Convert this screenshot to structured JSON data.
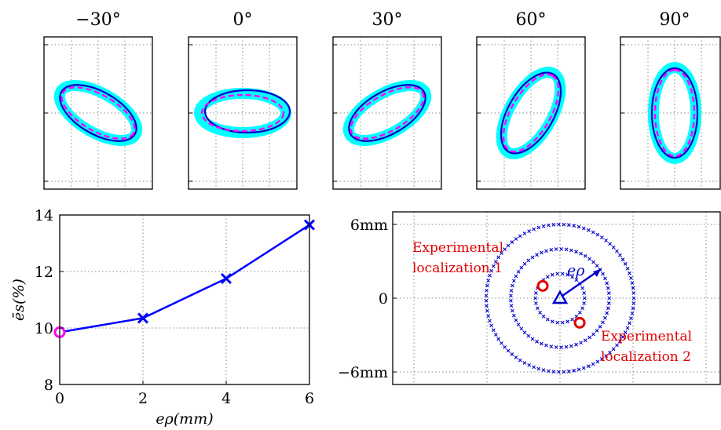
{
  "chart_data": [
    {
      "type": "line",
      "title": "",
      "panels": [
        {
          "title": "−30°",
          "angle_deg": -30
        },
        {
          "title": "0°",
          "angle_deg": 0
        },
        {
          "title": "30°",
          "angle_deg": 30
        },
        {
          "title": "60°",
          "angle_deg": 60
        },
        {
          "title": "90°",
          "angle_deg": 90
        }
      ],
      "series": [
        {
          "role": "band",
          "color": "#00ffff"
        },
        {
          "role": "solid-ellipse",
          "color": "#0000cc"
        },
        {
          "role": "dashed-ellipse",
          "color": "#ff00ff"
        }
      ],
      "grid": true
    },
    {
      "type": "line",
      "x": [
        0,
        2,
        4,
        6
      ],
      "series": [
        {
          "values": [
            9.85,
            10.35,
            11.75,
            13.65
          ],
          "color": "#0000ff"
        }
      ],
      "highlight_point": {
        "x": 0,
        "y": 9.85,
        "color": "#ff00ff"
      },
      "xlabel": "eρ(mm)",
      "ylabel": "ēs(%)",
      "xlim": [
        0,
        6
      ],
      "ylim": [
        8,
        14
      ],
      "xticks": [
        "0",
        "2",
        "4",
        "6"
      ],
      "yticks": [
        "8",
        "10",
        "12",
        "14"
      ],
      "grid": true
    },
    {
      "type": "scatter",
      "yticks": [
        "6mm",
        "0",
        "−6mm"
      ],
      "ylim": [
        -6.5,
        6.5
      ],
      "center_marker": {
        "x": 0,
        "y": 0,
        "shape": "triangle",
        "color": "#0000cc"
      },
      "rings_mm": [
        2,
        4,
        6
      ],
      "ring_color": "#0000cc",
      "radius_arrow_label": "eρ",
      "annotations": [
        {
          "line1": "Experimental",
          "line2": "localization 1",
          "x": -1.4,
          "y": 1.0
        },
        {
          "line1": "Experimental",
          "line2": "localization 2",
          "x": 1.6,
          "y": -2.0
        }
      ],
      "annotation_color": "#e00000",
      "grid": true
    }
  ]
}
